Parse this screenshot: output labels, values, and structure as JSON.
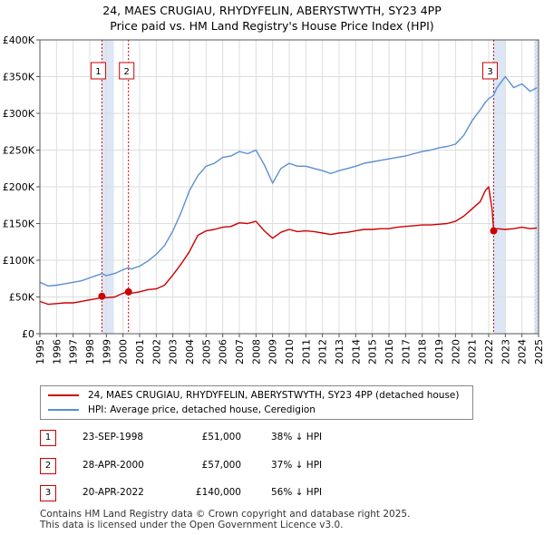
{
  "title_line1": "24, MAES CRUGIAU, RHYDYFELIN, ABERYSTWYTH, SY23 4PP",
  "title_line2": "Price paid vs. HM Land Registry's House Price Index (HPI)",
  "legend": {
    "property": "24, MAES CRUGIAU, RHYDYFELIN, ABERYSTWYTH, SY23 4PP (detached house)",
    "hpi": "HPI: Average price, detached house, Ceredigion"
  },
  "transactions": [
    {
      "num": "1",
      "date": "23-SEP-1998",
      "price": "£51,000",
      "hpi": "38% ↓ HPI"
    },
    {
      "num": "2",
      "date": "28-APR-2000",
      "price": "£57,000",
      "hpi": "37% ↓ HPI"
    },
    {
      "num": "3",
      "date": "20-APR-2022",
      "price": "£140,000",
      "hpi": "56% ↓ HPI"
    }
  ],
  "footer_line1": "Contains HM Land Registry data © Crown copyright and database right 2025.",
  "footer_line2": "This data is licensed under the Open Government Licence v3.0.",
  "colors": {
    "property": "#cc0000",
    "hpi": "#5b8fd0",
    "shade": "#dde6f5",
    "grid": "#dddddd"
  },
  "chart_data": {
    "type": "line",
    "xlim": [
      1995,
      2025
    ],
    "ylim": [
      0,
      400000
    ],
    "x_ticks": [
      1995,
      1996,
      1997,
      1998,
      1999,
      2000,
      2001,
      2002,
      2003,
      2004,
      2005,
      2006,
      2007,
      2008,
      2009,
      2010,
      2011,
      2012,
      2013,
      2014,
      2015,
      2016,
      2017,
      2018,
      2019,
      2020,
      2021,
      2022,
      2023,
      2024,
      2025
    ],
    "x_tick_labels": [
      "1995",
      "1996",
      "1997",
      "1998",
      "1999",
      "2000",
      "2001",
      "2002",
      "2003",
      "2004",
      "2005",
      "2006",
      "2007",
      "2008",
      "2009",
      "2010",
      "2011",
      "2012",
      "2013",
      "2014",
      "2015",
      "2016",
      "2017",
      "2018",
      "2019",
      "2020",
      "2021",
      "2022",
      "2023",
      "2024",
      "2025"
    ],
    "y_ticks": [
      0,
      50000,
      100000,
      150000,
      200000,
      250000,
      300000,
      350000,
      400000
    ],
    "y_tick_labels": [
      "£0",
      "£50K",
      "£100K",
      "£150K",
      "£200K",
      "£250K",
      "£300K",
      "£350K",
      "£400K"
    ],
    "shaded_ranges": [
      [
        1998.73,
        1999.45
      ],
      [
        2022.3,
        2022.98
      ],
      [
        2024.75,
        2025
      ]
    ],
    "series": [
      {
        "name": "24, MAES CRUGIAU, RHYDYFELIN, ABERYSTWYTH, SY23 4PP (detached house)",
        "color": "#cc0000",
        "x": [
          1995.0,
          1995.5,
          1996.0,
          1996.5,
          1997.0,
          1997.5,
          1998.0,
          1998.5,
          1998.73,
          1999.0,
          1999.5,
          2000.0,
          2000.33,
          2000.5,
          2001.0,
          2001.5,
          2002.0,
          2002.5,
          2003.0,
          2003.5,
          2004.0,
          2004.5,
          2005.0,
          2005.5,
          2006.0,
          2006.5,
          2007.0,
          2007.5,
          2008.0,
          2008.5,
          2009.0,
          2009.5,
          2010.0,
          2010.5,
          2011.0,
          2011.5,
          2012.0,
          2012.5,
          2013.0,
          2013.5,
          2014.0,
          2014.5,
          2015.0,
          2015.5,
          2016.0,
          2016.5,
          2017.0,
          2017.5,
          2018.0,
          2018.5,
          2019.0,
          2019.5,
          2020.0,
          2020.5,
          2021.0,
          2021.5,
          2021.8,
          2022.0,
          2022.2,
          2022.3,
          2022.5,
          2023.0,
          2023.5,
          2024.0,
          2024.5,
          2024.9
        ],
        "y": [
          44000,
          40000,
          41000,
          42000,
          42000,
          44000,
          46000,
          48000,
          51000,
          49000,
          50000,
          55000,
          57000,
          55000,
          57000,
          60000,
          61000,
          66000,
          80000,
          95000,
          112000,
          134000,
          140000,
          142000,
          145000,
          146000,
          151000,
          150000,
          153000,
          140000,
          130000,
          138000,
          142000,
          139000,
          140000,
          139000,
          137000,
          135000,
          137000,
          138000,
          140000,
          142000,
          142000,
          143000,
          143000,
          145000,
          146000,
          147000,
          148000,
          148000,
          149000,
          150000,
          153000,
          160000,
          170000,
          180000,
          195000,
          200000,
          170000,
          140000,
          143000,
          142000,
          143000,
          145000,
          143000,
          144000
        ]
      },
      {
        "name": "HPI: Average price, detached house, Ceredigion",
        "color": "#5b8fd0",
        "x": [
          1995.0,
          1995.5,
          1996.0,
          1996.5,
          1997.0,
          1997.5,
          1998.0,
          1998.5,
          1998.73,
          1999.0,
          1999.5,
          2000.0,
          2000.33,
          2000.5,
          2001.0,
          2001.5,
          2002.0,
          2002.5,
          2003.0,
          2003.5,
          2004.0,
          2004.5,
          2005.0,
          2005.5,
          2006.0,
          2006.5,
          2007.0,
          2007.5,
          2008.0,
          2008.5,
          2009.0,
          2009.5,
          2010.0,
          2010.5,
          2011.0,
          2011.5,
          2012.0,
          2012.5,
          2013.0,
          2013.5,
          2014.0,
          2014.5,
          2015.0,
          2015.5,
          2016.0,
          2016.5,
          2017.0,
          2017.5,
          2018.0,
          2018.5,
          2019.0,
          2019.5,
          2020.0,
          2020.5,
          2021.0,
          2021.5,
          2021.8,
          2022.0,
          2022.2,
          2022.3,
          2022.5,
          2023.0,
          2023.5,
          2024.0,
          2024.5,
          2024.9
        ],
        "y": [
          70000,
          65000,
          66000,
          68000,
          70000,
          72000,
          76000,
          80000,
          82000,
          79000,
          82000,
          87000,
          90000,
          88000,
          92000,
          99000,
          108000,
          120000,
          140000,
          165000,
          195000,
          215000,
          228000,
          232000,
          240000,
          242000,
          248000,
          245000,
          250000,
          230000,
          205000,
          225000,
          232000,
          228000,
          228000,
          225000,
          222000,
          218000,
          222000,
          225000,
          228000,
          232000,
          234000,
          236000,
          238000,
          240000,
          242000,
          245000,
          248000,
          250000,
          253000,
          255000,
          258000,
          270000,
          290000,
          305000,
          315000,
          320000,
          323000,
          325000,
          335000,
          350000,
          335000,
          340000,
          330000,
          335000
        ]
      }
    ],
    "markers": [
      {
        "label": "1",
        "x": 1998.73,
        "y": 51000
      },
      {
        "label": "2",
        "x": 2000.33,
        "y": 57000
      },
      {
        "label": "3",
        "x": 2022.3,
        "y": 140000
      }
    ]
  }
}
